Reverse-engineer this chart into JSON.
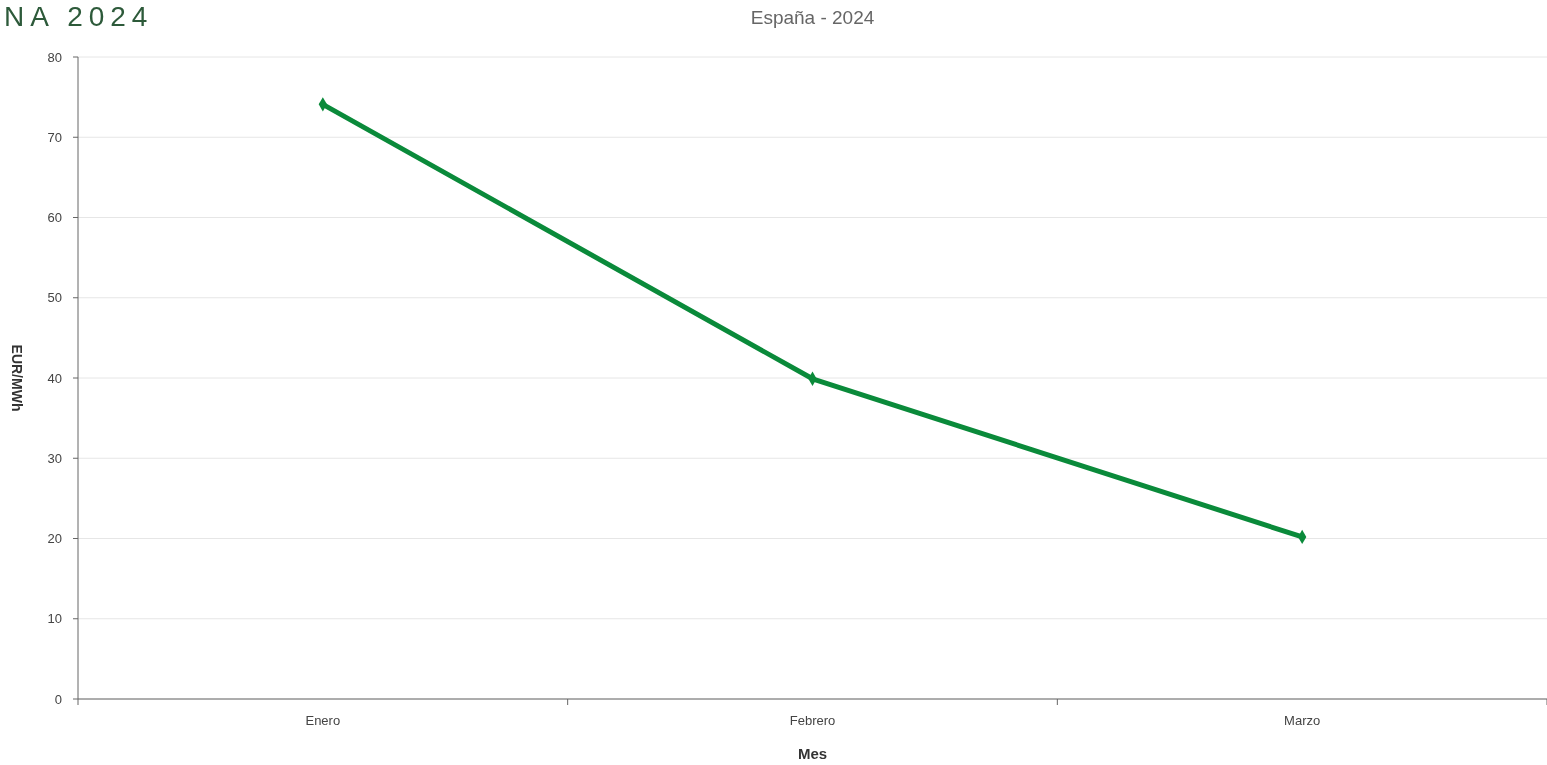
{
  "chart_data": {
    "type": "line",
    "title": "España - 2024",
    "annotations": [
      "NA 2024"
    ],
    "xlabel": "Mes",
    "ylabel": "EUR/MWh",
    "categories": [
      "Enero",
      "Febrero",
      "Marzo"
    ],
    "series": [
      {
        "color": "#0a8a3a",
        "values": [
          74.1,
          39.9,
          20.2
        ]
      }
    ],
    "ylim": [
      0,
      80
    ],
    "yticks": [
      0,
      10,
      20,
      30,
      40,
      50,
      60,
      70,
      80
    ],
    "grid": "y",
    "marker": "diamond",
    "line_style": "solid"
  }
}
